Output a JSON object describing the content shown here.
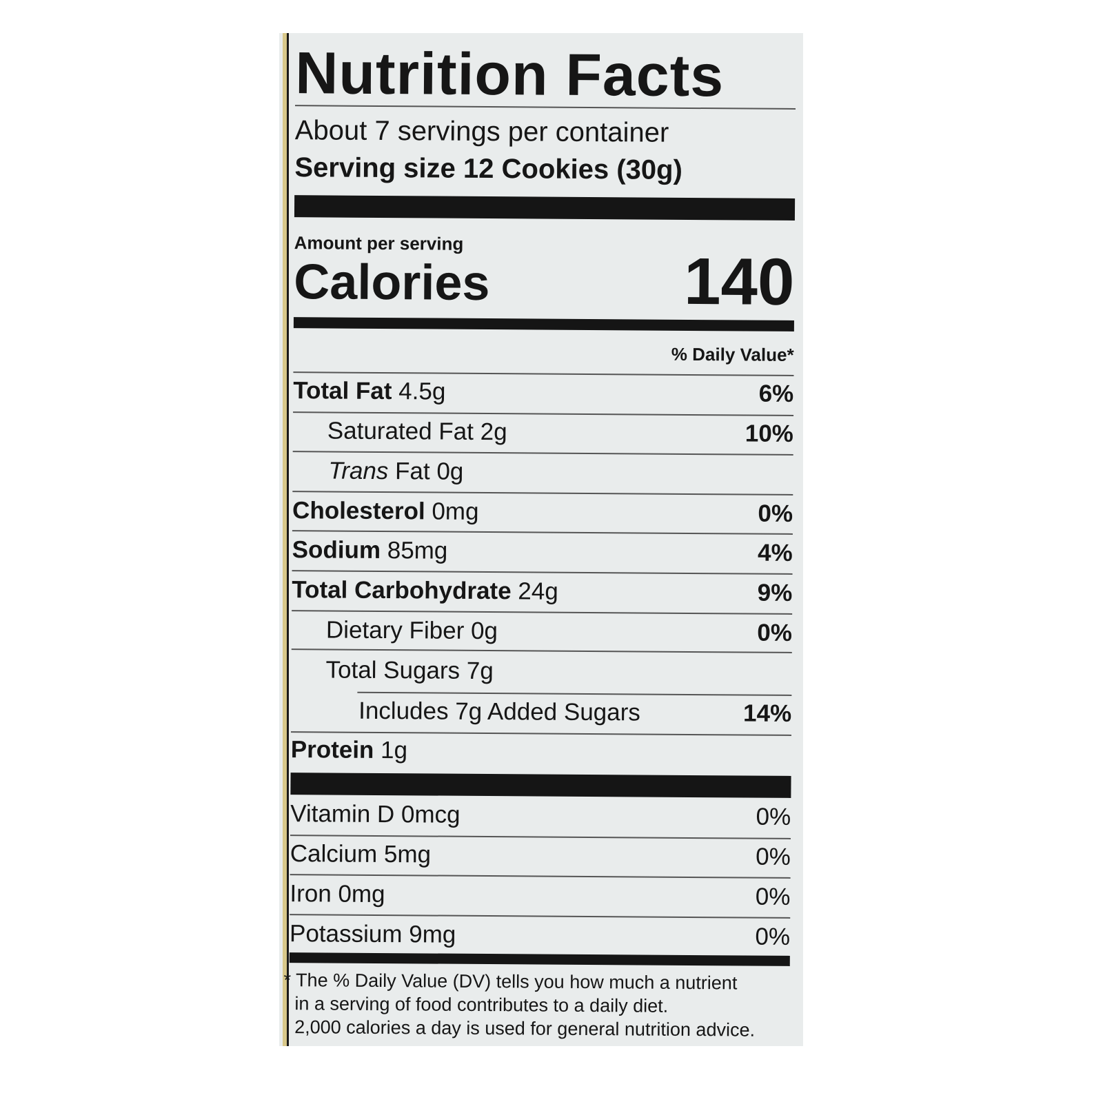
{
  "title": "Nutrition Facts",
  "servings": "About 7 servings per container",
  "serving_size_label": "Serving size",
  "serving_size_value": "12 Cookies (30g)",
  "amount_per_serving": "Amount per serving",
  "calories_label": "Calories",
  "calories_value": "140",
  "dv_header": "% Daily Value*",
  "nutrients": [
    {
      "name": "Total Fat",
      "amount": "4.5g",
      "dv": "6%"
    },
    {
      "name": "Saturated Fat",
      "amount": "2g",
      "dv": "10%"
    },
    {
      "name": "Trans",
      "name_rest": "Fat",
      "amount": "0g",
      "dv": ""
    },
    {
      "name": "Cholesterol",
      "amount": "0mg",
      "dv": "0%"
    },
    {
      "name": "Sodium",
      "amount": "85mg",
      "dv": "4%"
    },
    {
      "name": "Total Carbohydrate",
      "amount": "24g",
      "dv": "9%"
    },
    {
      "name": "Dietary Fiber",
      "amount": "0g",
      "dv": "0%"
    },
    {
      "name": "Total Sugars",
      "amount": "7g",
      "dv": ""
    },
    {
      "name": "Includes 7g Added Sugars",
      "amount": "",
      "dv": "14%"
    },
    {
      "name": "Protein",
      "amount": "1g",
      "dv": ""
    }
  ],
  "vitamins": [
    {
      "name": "Vitamin D",
      "amount": "0mcg",
      "dv": "0%"
    },
    {
      "name": "Calcium",
      "amount": "5mg",
      "dv": "0%"
    },
    {
      "name": "Iron",
      "amount": "0mg",
      "dv": "0%"
    },
    {
      "name": "Potassium",
      "amount": "9mg",
      "dv": "0%"
    }
  ],
  "footnote": [
    "* The % Daily Value (DV) tells you how much a nutrient",
    "in a serving of food contributes to a daily diet.",
    "2,000 calories a day is used for general nutrition advice."
  ]
}
